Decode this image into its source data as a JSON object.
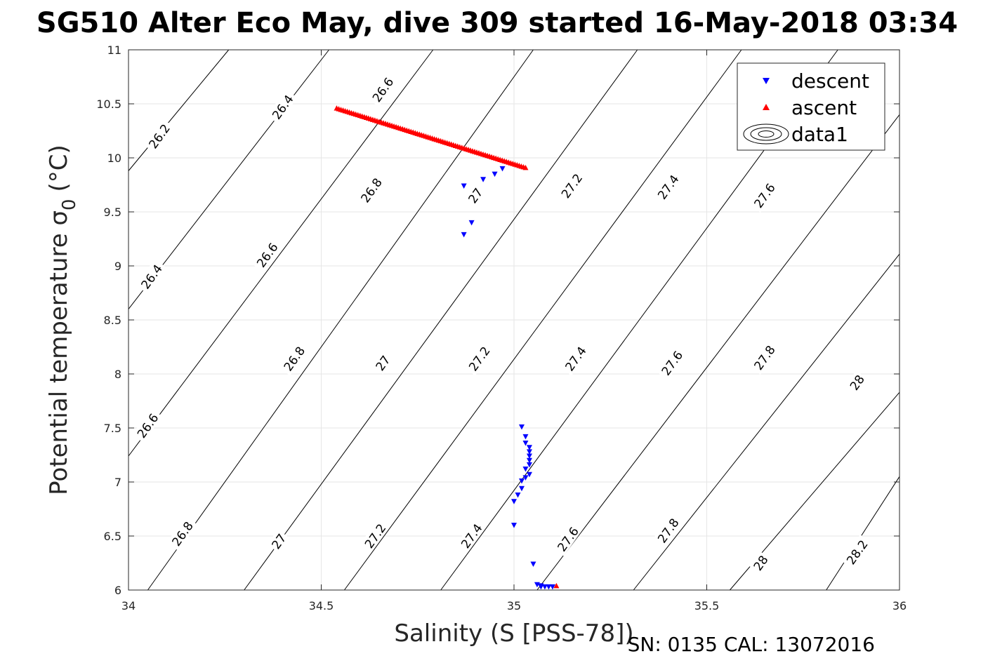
{
  "chart_data": {
    "type": "scatter",
    "title": "SG510 Alter Eco May, dive 309 started 16-May-2018 03:34",
    "xlabel": "Salinity (S [PSS-78])",
    "ylabel_main": "Potential temperature σ",
    "ylabel_sub": "0",
    "ylabel_unit": "(°C)",
    "footer": "SN: 0135  CAL: 13072016",
    "xlim": [
      34,
      36
    ],
    "ylim": [
      6,
      11
    ],
    "x_ticks": [
      34,
      34.5,
      35,
      35.5,
      36
    ],
    "x_tick_labels": [
      "34",
      "34.5",
      "35",
      "35.5",
      "36"
    ],
    "y_ticks": [
      6,
      6.5,
      7,
      7.5,
      8,
      8.5,
      9,
      9.5,
      10,
      10.5,
      11
    ],
    "y_tick_labels": [
      "6",
      "6.5",
      "7",
      "7.5",
      "8",
      "8.5",
      "9",
      "9.5",
      "10",
      "10.5",
      "11"
    ],
    "grid": true,
    "legend_position": "top-right",
    "legend": [
      {
        "label": "descent",
        "marker": "triangle-down",
        "color": "#0000ff"
      },
      {
        "label": "ascent",
        "marker": "triangle-up",
        "color": "#ff0000"
      },
      {
        "label": "data1",
        "marker": "contour"
      }
    ],
    "series": [
      {
        "name": "descent",
        "color": "#0000ff",
        "marker": "triangle-down",
        "points": [
          [
            34.87,
            9.74
          ],
          [
            34.92,
            9.8
          ],
          [
            34.95,
            9.85
          ],
          [
            34.97,
            9.9
          ],
          [
            34.87,
            9.29
          ],
          [
            34.89,
            9.4
          ],
          [
            35.02,
            7.51
          ],
          [
            35.03,
            7.42
          ],
          [
            35.03,
            7.36
          ],
          [
            35.04,
            7.32
          ],
          [
            35.04,
            7.28
          ],
          [
            35.04,
            7.24
          ],
          [
            35.04,
            7.2
          ],
          [
            35.04,
            7.16
          ],
          [
            35.03,
            7.12
          ],
          [
            35.04,
            7.07
          ],
          [
            35.03,
            7.04
          ],
          [
            35.02,
            7.01
          ],
          [
            35.02,
            6.94
          ],
          [
            35.01,
            6.88
          ],
          [
            35.0,
            6.82
          ],
          [
            35.0,
            6.6
          ],
          [
            35.05,
            6.24
          ],
          [
            35.06,
            6.05
          ],
          [
            35.07,
            6.04
          ],
          [
            35.07,
            6.03
          ],
          [
            35.08,
            6.03
          ],
          [
            35.09,
            6.03
          ],
          [
            35.1,
            6.03
          ]
        ]
      },
      {
        "name": "ascent",
        "color": "#ff0000",
        "marker": "triangle-up",
        "points_start": [
          34.54,
          10.46
        ],
        "points_end": [
          35.03,
          9.91
        ],
        "n_points": 90,
        "extra_points": [
          [
            35.11,
            6.04
          ]
        ]
      }
    ],
    "contours": {
      "type": "sigma0 isopycnals",
      "levels": [
        26.2,
        26.4,
        26.6,
        26.8,
        27,
        27.2,
        27.4,
        27.6,
        27.8,
        28,
        28.2
      ],
      "lines": [
        {
          "level": 26.2,
          "pts": [
            [
              34,
              9.88
            ],
            [
              34.26,
              11.0
            ]
          ]
        },
        {
          "level": 26.4,
          "pts": [
            [
              34,
              8.6
            ],
            [
              34.52,
              11.0
            ]
          ]
        },
        {
          "level": 26.6,
          "pts": [
            [
              34,
              7.24
            ],
            [
              34.79,
              11.0
            ]
          ]
        },
        {
          "level": 26.8,
          "pts": [
            [
              34.05,
              6.0
            ],
            [
              35.05,
              11.0
            ]
          ]
        },
        {
          "level": 27,
          "pts": [
            [
              34.3,
              6.0
            ],
            [
              35.32,
              11.0
            ]
          ]
        },
        {
          "level": 27.2,
          "pts": [
            [
              34.56,
              6.0
            ],
            [
              35.59,
              11.0
            ]
          ]
        },
        {
          "level": 27.4,
          "pts": [
            [
              34.81,
              6.0
            ],
            [
              35.84,
              11.0
            ]
          ]
        },
        {
          "level": 27.6,
          "pts": [
            [
              35.06,
              6.0
            ],
            [
              36.0,
              10.4
            ]
          ]
        },
        {
          "level": 27.8,
          "pts": [
            [
              35.31,
              6.0
            ],
            [
              36.0,
              9.11
            ]
          ]
        },
        {
          "level": 28,
          "pts": [
            [
              35.56,
              6.0
            ],
            [
              36.0,
              7.83
            ]
          ]
        },
        {
          "level": 28.2,
          "pts": [
            [
              35.81,
              6.0
            ],
            [
              36.0,
              7.05
            ]
          ]
        }
      ],
      "labels": [
        {
          "text": "26.2",
          "at": [
            34.08,
            10.2
          ]
        },
        {
          "text": "26.4",
          "at": [
            34.4,
            10.47
          ]
        },
        {
          "text": "26.6",
          "at": [
            34.66,
            10.63
          ]
        },
        {
          "text": "26.4",
          "at": [
            34.06,
            8.9
          ]
        },
        {
          "text": "26.6",
          "at": [
            34.36,
            9.1
          ]
        },
        {
          "text": "26.8",
          "at": [
            34.63,
            9.7
          ]
        },
        {
          "text": "27",
          "at": [
            34.9,
            9.65
          ]
        },
        {
          "text": "27.2",
          "at": [
            35.15,
            9.74
          ]
        },
        {
          "text": "27.4",
          "at": [
            35.4,
            9.73
          ]
        },
        {
          "text": "27.6",
          "at": [
            35.65,
            9.65
          ]
        },
        {
          "text": "26.6",
          "at": [
            34.05,
            7.52
          ]
        },
        {
          "text": "26.8",
          "at": [
            34.43,
            8.14
          ]
        },
        {
          "text": "27",
          "at": [
            34.66,
            8.1
          ]
        },
        {
          "text": "27.2",
          "at": [
            34.91,
            8.14
          ]
        },
        {
          "text": "27.4",
          "at": [
            35.16,
            8.14
          ]
        },
        {
          "text": "27.6",
          "at": [
            35.41,
            8.1
          ]
        },
        {
          "text": "27.8",
          "at": [
            35.65,
            8.15
          ]
        },
        {
          "text": "28",
          "at": [
            35.89,
            7.92
          ]
        },
        {
          "text": "26.8",
          "at": [
            34.14,
            6.52
          ]
        },
        {
          "text": "27",
          "at": [
            34.39,
            6.45
          ]
        },
        {
          "text": "27.2",
          "at": [
            34.64,
            6.5
          ]
        },
        {
          "text": "27.4",
          "at": [
            34.89,
            6.5
          ]
        },
        {
          "text": "27.6",
          "at": [
            35.14,
            6.47
          ]
        },
        {
          "text": "27.8",
          "at": [
            35.4,
            6.55
          ]
        },
        {
          "text": "28",
          "at": [
            35.64,
            6.25
          ]
        },
        {
          "text": "28.2",
          "at": [
            35.89,
            6.35
          ]
        }
      ]
    }
  }
}
